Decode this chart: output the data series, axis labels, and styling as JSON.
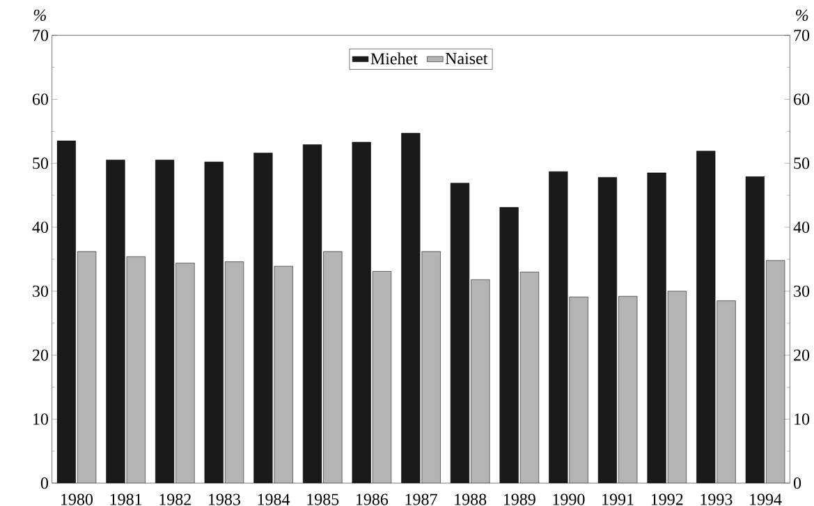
{
  "chart_data": {
    "type": "bar",
    "ylabel": "%",
    "y2label": "%",
    "categories": [
      "1980",
      "1981",
      "1982",
      "1983",
      "1984",
      "1985",
      "1986",
      "1987",
      "1988",
      "1989",
      "1990",
      "1991",
      "1992",
      "1993",
      "1994"
    ],
    "series": [
      {
        "name": "Miehet",
        "color": "#1a1a1a",
        "values": [
          53.5,
          50.5,
          50.5,
          50.2,
          51.6,
          52.9,
          53.3,
          54.7,
          46.9,
          43.1,
          48.7,
          47.8,
          48.5,
          51.9,
          47.9
        ]
      },
      {
        "name": "Naiset",
        "color": "#b4b4b4",
        "values": [
          36.2,
          35.4,
          34.4,
          34.6,
          33.9,
          36.2,
          33.1,
          36.2,
          31.8,
          33.0,
          29.1,
          29.2,
          30.0,
          28.5,
          34.8
        ]
      }
    ],
    "ylim": [
      0,
      70
    ],
    "yticks": [
      0,
      10,
      20,
      30,
      40,
      50,
      60,
      70
    ],
    "y2lim": [
      0,
      70
    ],
    "y2ticks": [
      0,
      10,
      20,
      30,
      40,
      50,
      60,
      70
    ],
    "legend": "top",
    "grid": false
  }
}
